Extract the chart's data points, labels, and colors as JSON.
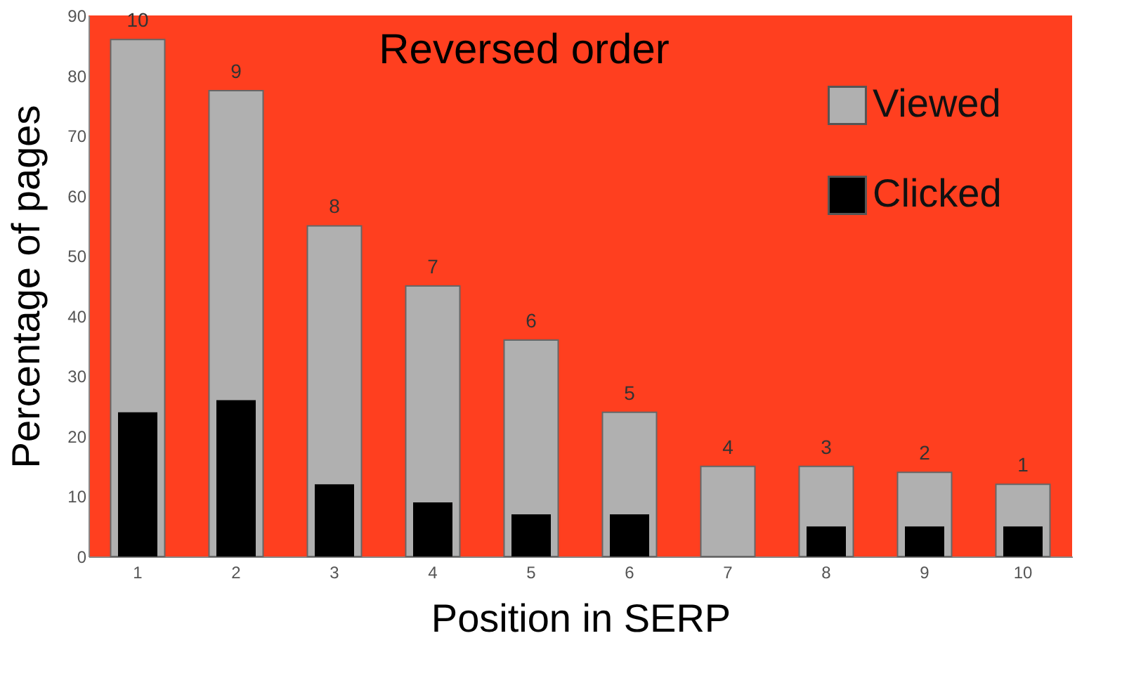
{
  "chart_data": {
    "type": "bar",
    "title": "Reversed order",
    "xlabel": "Position in SERP",
    "ylabel": "Percentage of pages",
    "categories": [
      "1",
      "2",
      "3",
      "4",
      "5",
      "6",
      "7",
      "8",
      "9",
      "10"
    ],
    "series": [
      {
        "name": "Viewed",
        "color": "#b0b0b0",
        "values": [
          86,
          77.5,
          55,
          45,
          36,
          24,
          15,
          15,
          14,
          12
        ]
      },
      {
        "name": "Clicked",
        "color": "#000000",
        "values": [
          24,
          26,
          12,
          9,
          7,
          7,
          null,
          5,
          5,
          5
        ]
      }
    ],
    "ylim": [
      0,
      90
    ],
    "yticks": [
      0,
      10,
      20,
      30,
      40,
      50,
      60,
      70,
      80,
      90
    ],
    "legend": "top right",
    "annotations": [
      {
        "text": "10",
        "x": "1",
        "y": 86
      },
      {
        "text": "9",
        "x": "2",
        "y": 77.5
      },
      {
        "text": "8",
        "x": "3",
        "y": 55
      },
      {
        "text": "7",
        "x": "4",
        "y": 45
      },
      {
        "text": "6",
        "x": "5",
        "y": 36
      },
      {
        "text": "5",
        "x": "6",
        "y": 24
      },
      {
        "text": "4",
        "x": "7",
        "y": 15
      },
      {
        "text": "3",
        "x": "8",
        "y": 15
      },
      {
        "text": "2",
        "x": "9",
        "y": 14
      },
      {
        "text": "1",
        "x": "10",
        "y": 12
      }
    ]
  }
}
